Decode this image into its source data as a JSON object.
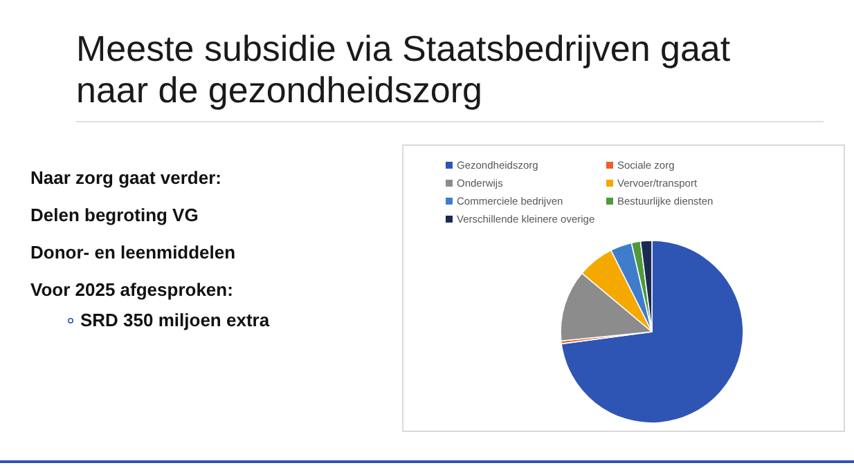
{
  "chart_data": {
    "type": "pie",
    "title": "Meeste subsidie via Staatsbedrijven gaat naar de gezondheidszorg",
    "categories": [
      "Gezondheidszorg",
      "Sociale zorg",
      "Onderwijs",
      "Vervoer/transport",
      "Commerciele bedrijven",
      "Bestuurlijke diensten",
      "Verschillende kleinere overige"
    ],
    "values": [
      72.9,
      0.5,
      12.7,
      6.5,
      3.8,
      1.6,
      2.0
    ],
    "colors": [
      "#2f55b4",
      "#e8622a",
      "#8c8c8c",
      "#f5a800",
      "#3f7ccc",
      "#4f9a3a",
      "#1a2a50"
    ],
    "legend": "top",
    "annotations": [
      "Naar zorg gaat verder:",
      "Delen begroting VG",
      "Donor- en leenmiddelen",
      "Voor 2025 afgesproken:",
      "SRD 350 miljoen extra"
    ]
  }
}
